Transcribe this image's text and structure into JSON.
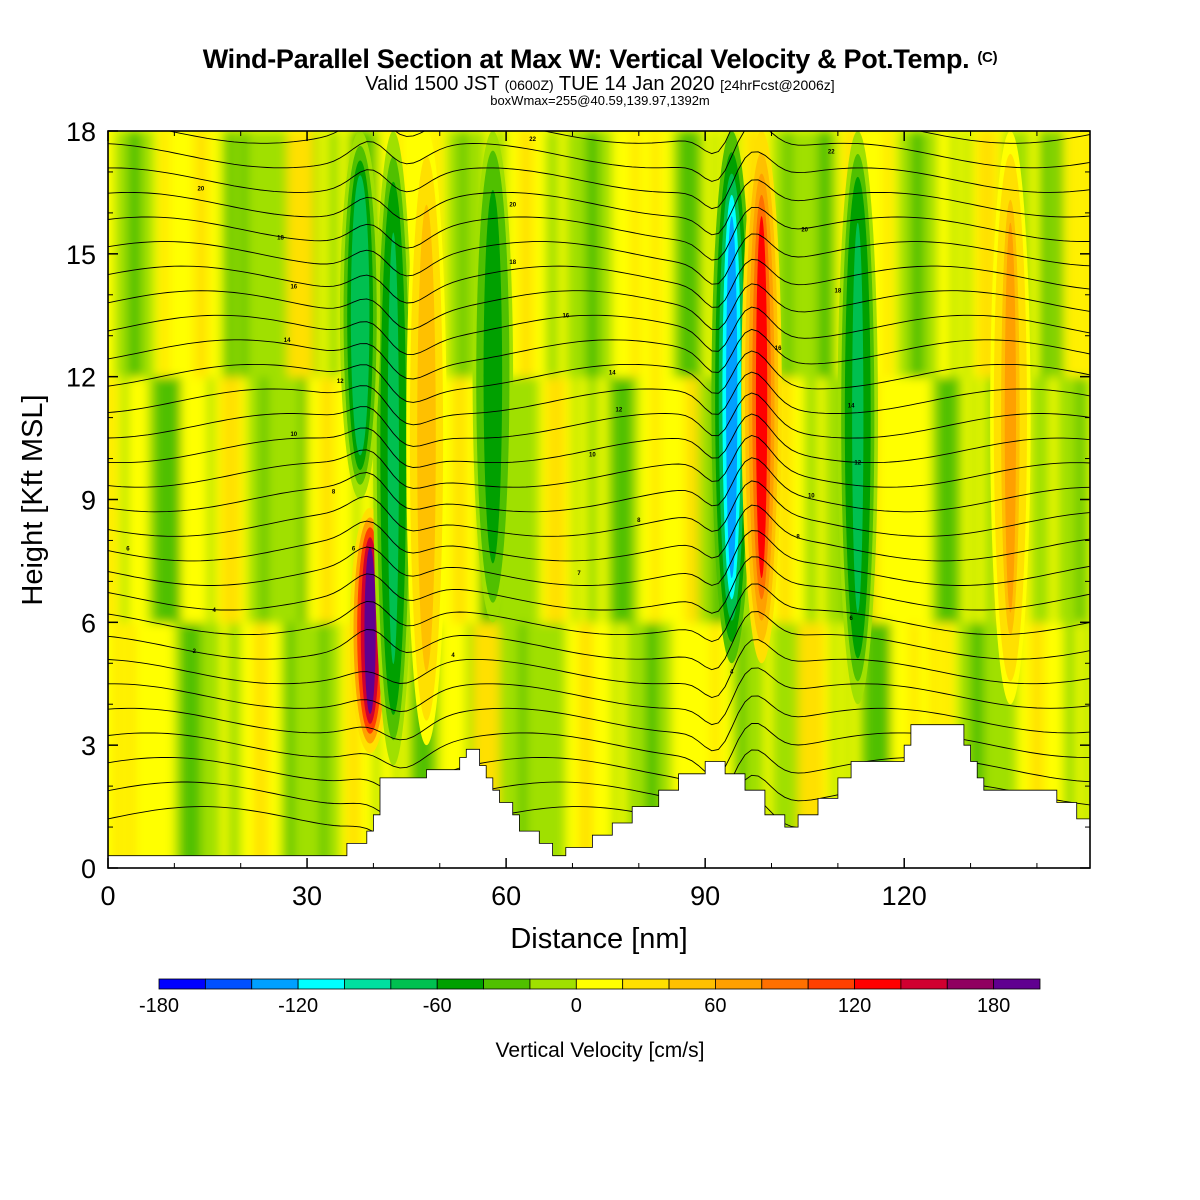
{
  "header": {
    "title": "Wind-Parallel Section at Max W: Vertical Velocity & Pot.Temp.",
    "title_mark": "(C)",
    "valid_prefix": "Valid 1500 JST",
    "valid_utc": "(0600Z)",
    "valid_date": "TUE 14 Jan 2020",
    "forecast": "[24hrFcst@2006z]",
    "box_info": "boxWmax=255@40.59,139.97,1392m"
  },
  "chart_data": {
    "type": "heatmap",
    "xlabel": "Distance [nm]",
    "ylabel": "Height [Kft MSL]",
    "xlim": [
      0,
      148
    ],
    "ylim": [
      0,
      18
    ],
    "x_ticks": [
      0,
      30,
      60,
      90,
      120
    ],
    "x_tick_labels": [
      "0",
      "30",
      "60",
      "90",
      "120"
    ],
    "y_ticks": [
      0,
      3,
      6,
      9,
      12,
      15,
      18
    ],
    "y_tick_labels": [
      "0",
      "3",
      "6",
      "9",
      "12",
      "15",
      "18"
    ],
    "colorbar": {
      "label": "Vertical Velocity [cm/s]",
      "range": [
        -180,
        200
      ],
      "tick_values": [
        -180,
        -120,
        -60,
        0,
        60,
        120,
        180
      ],
      "tick_labels": [
        "-180",
        "-120",
        "-60",
        "0",
        "60",
        "120",
        "180"
      ],
      "colors": [
        "#0000ff",
        "#0050ff",
        "#00a0ff",
        "#00ffff",
        "#00e0a0",
        "#00c050",
        "#00a000",
        "#50c000",
        "#a0e000",
        "#ffff00",
        "#ffe000",
        "#ffc000",
        "#ffa000",
        "#ff7000",
        "#ff4000",
        "#ff0000",
        "#d00030",
        "#900060",
        "#600090"
      ]
    },
    "velocity_features": [
      {
        "x": 39.5,
        "ymin": 2.8,
        "ymax": 8.8,
        "peak": 190,
        "kind": "updraft"
      },
      {
        "x": 43,
        "ymin": 2.5,
        "ymax": 18,
        "peak": -70,
        "kind": "downdraft"
      },
      {
        "x": 38,
        "ymin": 9,
        "ymax": 18,
        "peak": -80,
        "kind": "downdraft"
      },
      {
        "x": 94,
        "ymin": 5,
        "ymax": 18,
        "peak": -130,
        "kind": "downdraft"
      },
      {
        "x": 98.5,
        "ymin": 5,
        "ymax": 18,
        "peak": 120,
        "kind": "updraft"
      },
      {
        "x": 113,
        "ymin": 4,
        "ymax": 18,
        "peak": -70,
        "kind": "downdraft"
      },
      {
        "x": 48,
        "ymin": 3,
        "ymax": 18,
        "peak": 50,
        "kind": "updraft"
      },
      {
        "x": 58,
        "ymin": 6,
        "ymax": 18,
        "peak": -60,
        "kind": "downdraft"
      },
      {
        "x": 136,
        "ymin": 4,
        "ymax": 18,
        "peak": 60,
        "kind": "updraft"
      }
    ],
    "terrain_kft": [
      [
        0,
        0.3
      ],
      [
        36,
        0.3
      ],
      [
        36,
        0.6
      ],
      [
        39,
        0.6
      ],
      [
        39,
        0.9
      ],
      [
        40,
        0.9
      ],
      [
        40,
        1.3
      ],
      [
        41,
        1.3
      ],
      [
        41,
        2.2
      ],
      [
        48,
        2.2
      ],
      [
        48,
        2.4
      ],
      [
        53,
        2.4
      ],
      [
        53,
        2.7
      ],
      [
        54,
        2.7
      ],
      [
        54,
        2.9
      ],
      [
        56,
        2.9
      ],
      [
        56,
        2.5
      ],
      [
        57,
        2.5
      ],
      [
        57,
        2.2
      ],
      [
        58,
        2.2
      ],
      [
        58,
        1.9
      ],
      [
        59,
        1.9
      ],
      [
        59,
        1.6
      ],
      [
        61,
        1.6
      ],
      [
        61,
        1.3
      ],
      [
        62,
        1.3
      ],
      [
        62,
        0.9
      ],
      [
        65,
        0.9
      ],
      [
        65,
        0.6
      ],
      [
        67,
        0.6
      ],
      [
        67,
        0.3
      ],
      [
        69,
        0.3
      ],
      [
        69,
        0.5
      ],
      [
        73,
        0.5
      ],
      [
        73,
        0.8
      ],
      [
        76,
        0.8
      ],
      [
        76,
        1.1
      ],
      [
        79,
        1.1
      ],
      [
        79,
        1.5
      ],
      [
        83,
        1.5
      ],
      [
        83,
        1.9
      ],
      [
        86,
        1.9
      ],
      [
        86,
        2.3
      ],
      [
        90,
        2.3
      ],
      [
        90,
        2.6
      ],
      [
        93,
        2.6
      ],
      [
        93,
        2.3
      ],
      [
        96,
        2.3
      ],
      [
        96,
        1.9
      ],
      [
        99,
        1.9
      ],
      [
        99,
        1.3
      ],
      [
        102,
        1.3
      ],
      [
        102,
        1.0
      ],
      [
        104,
        1.0
      ],
      [
        104,
        1.3
      ],
      [
        107,
        1.3
      ],
      [
        107,
        1.7
      ],
      [
        110,
        1.7
      ],
      [
        110,
        2.2
      ],
      [
        112,
        2.2
      ],
      [
        112,
        2.6
      ],
      [
        114,
        2.6
      ],
      [
        114,
        2.6
      ],
      [
        120,
        2.6
      ],
      [
        120,
        3.0
      ],
      [
        121,
        3.0
      ],
      [
        121,
        3.5
      ],
      [
        129,
        3.5
      ],
      [
        129,
        3.0
      ],
      [
        130,
        3.0
      ],
      [
        130,
        2.6
      ],
      [
        131,
        2.6
      ],
      [
        131,
        2.2
      ],
      [
        132,
        2.2
      ],
      [
        132,
        1.9
      ],
      [
        139,
        1.9
      ],
      [
        139,
        1.9
      ],
      [
        143,
        1.9
      ],
      [
        143,
        1.6
      ],
      [
        146,
        1.6
      ],
      [
        146,
        1.2
      ],
      [
        148,
        1.2
      ]
    ],
    "contour_labels": [
      {
        "x": 14,
        "y": 16.6,
        "text": "20"
      },
      {
        "x": 26,
        "y": 15.4,
        "text": "18"
      },
      {
        "x": 28,
        "y": 14.2,
        "text": "16"
      },
      {
        "x": 27,
        "y": 12.9,
        "text": "14"
      },
      {
        "x": 35,
        "y": 11.9,
        "text": "12"
      },
      {
        "x": 28,
        "y": 10.6,
        "text": "10"
      },
      {
        "x": 34,
        "y": 9.2,
        "text": "8"
      },
      {
        "x": 37,
        "y": 7.8,
        "text": "6"
      },
      {
        "x": 3,
        "y": 7.8,
        "text": "6"
      },
      {
        "x": 16,
        "y": 6.3,
        "text": "4"
      },
      {
        "x": 13,
        "y": 5.3,
        "text": "2"
      },
      {
        "x": 52,
        "y": 5.2,
        "text": "4"
      },
      {
        "x": 64,
        "y": 17.8,
        "text": "22"
      },
      {
        "x": 61,
        "y": 16.2,
        "text": "20"
      },
      {
        "x": 61,
        "y": 14.8,
        "text": "18"
      },
      {
        "x": 69,
        "y": 13.5,
        "text": "16"
      },
      {
        "x": 76,
        "y": 12.1,
        "text": "14"
      },
      {
        "x": 77,
        "y": 11.2,
        "text": "12"
      },
      {
        "x": 73,
        "y": 10.1,
        "text": "10"
      },
      {
        "x": 80,
        "y": 8.5,
        "text": "8"
      },
      {
        "x": 71,
        "y": 7.2,
        "text": "7"
      },
      {
        "x": 94,
        "y": 4.8,
        "text": "4"
      },
      {
        "x": 109,
        "y": 17.5,
        "text": "22"
      },
      {
        "x": 105,
        "y": 15.6,
        "text": "20"
      },
      {
        "x": 110,
        "y": 14.1,
        "text": "18"
      },
      {
        "x": 101,
        "y": 12.7,
        "text": "16"
      },
      {
        "x": 112,
        "y": 11.3,
        "text": "14"
      },
      {
        "x": 113,
        "y": 9.9,
        "text": "12"
      },
      {
        "x": 106,
        "y": 9.1,
        "text": "10"
      },
      {
        "x": 104,
        "y": 8.1,
        "text": "8"
      },
      {
        "x": 112,
        "y": 6.1,
        "text": "6"
      }
    ]
  }
}
